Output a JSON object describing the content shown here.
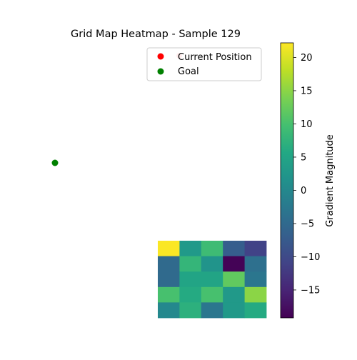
{
  "chart_data": {
    "type": "heatmap",
    "title": "Grid Map Heatmap - Sample 129",
    "grid_rows": 5,
    "grid_cols": 5,
    "matrix": [
      [
        22,
        3,
        9,
        -7,
        -11
      ],
      [
        -5,
        8,
        2,
        -19,
        -4
      ],
      [
        -5,
        5,
        5,
        12,
        -3
      ],
      [
        10,
        6,
        10,
        3,
        15
      ],
      [
        0,
        7,
        -3,
        3,
        6
      ]
    ],
    "markers": [
      {
        "label": "Current Position",
        "color": "#ff0000"
      },
      {
        "label": "Goal",
        "color": "#008000"
      }
    ],
    "legend": {
      "placement": "upper-right",
      "entries": [
        "Current Position",
        "Goal"
      ]
    },
    "colorbar": {
      "label": "Gradient Magnitude",
      "vmin": -19.2,
      "vmax": 22.2,
      "ticks": [
        -15,
        -10,
        -5,
        0,
        5,
        10,
        15,
        20
      ],
      "colormap": "viridis"
    },
    "axes_visible": false
  }
}
